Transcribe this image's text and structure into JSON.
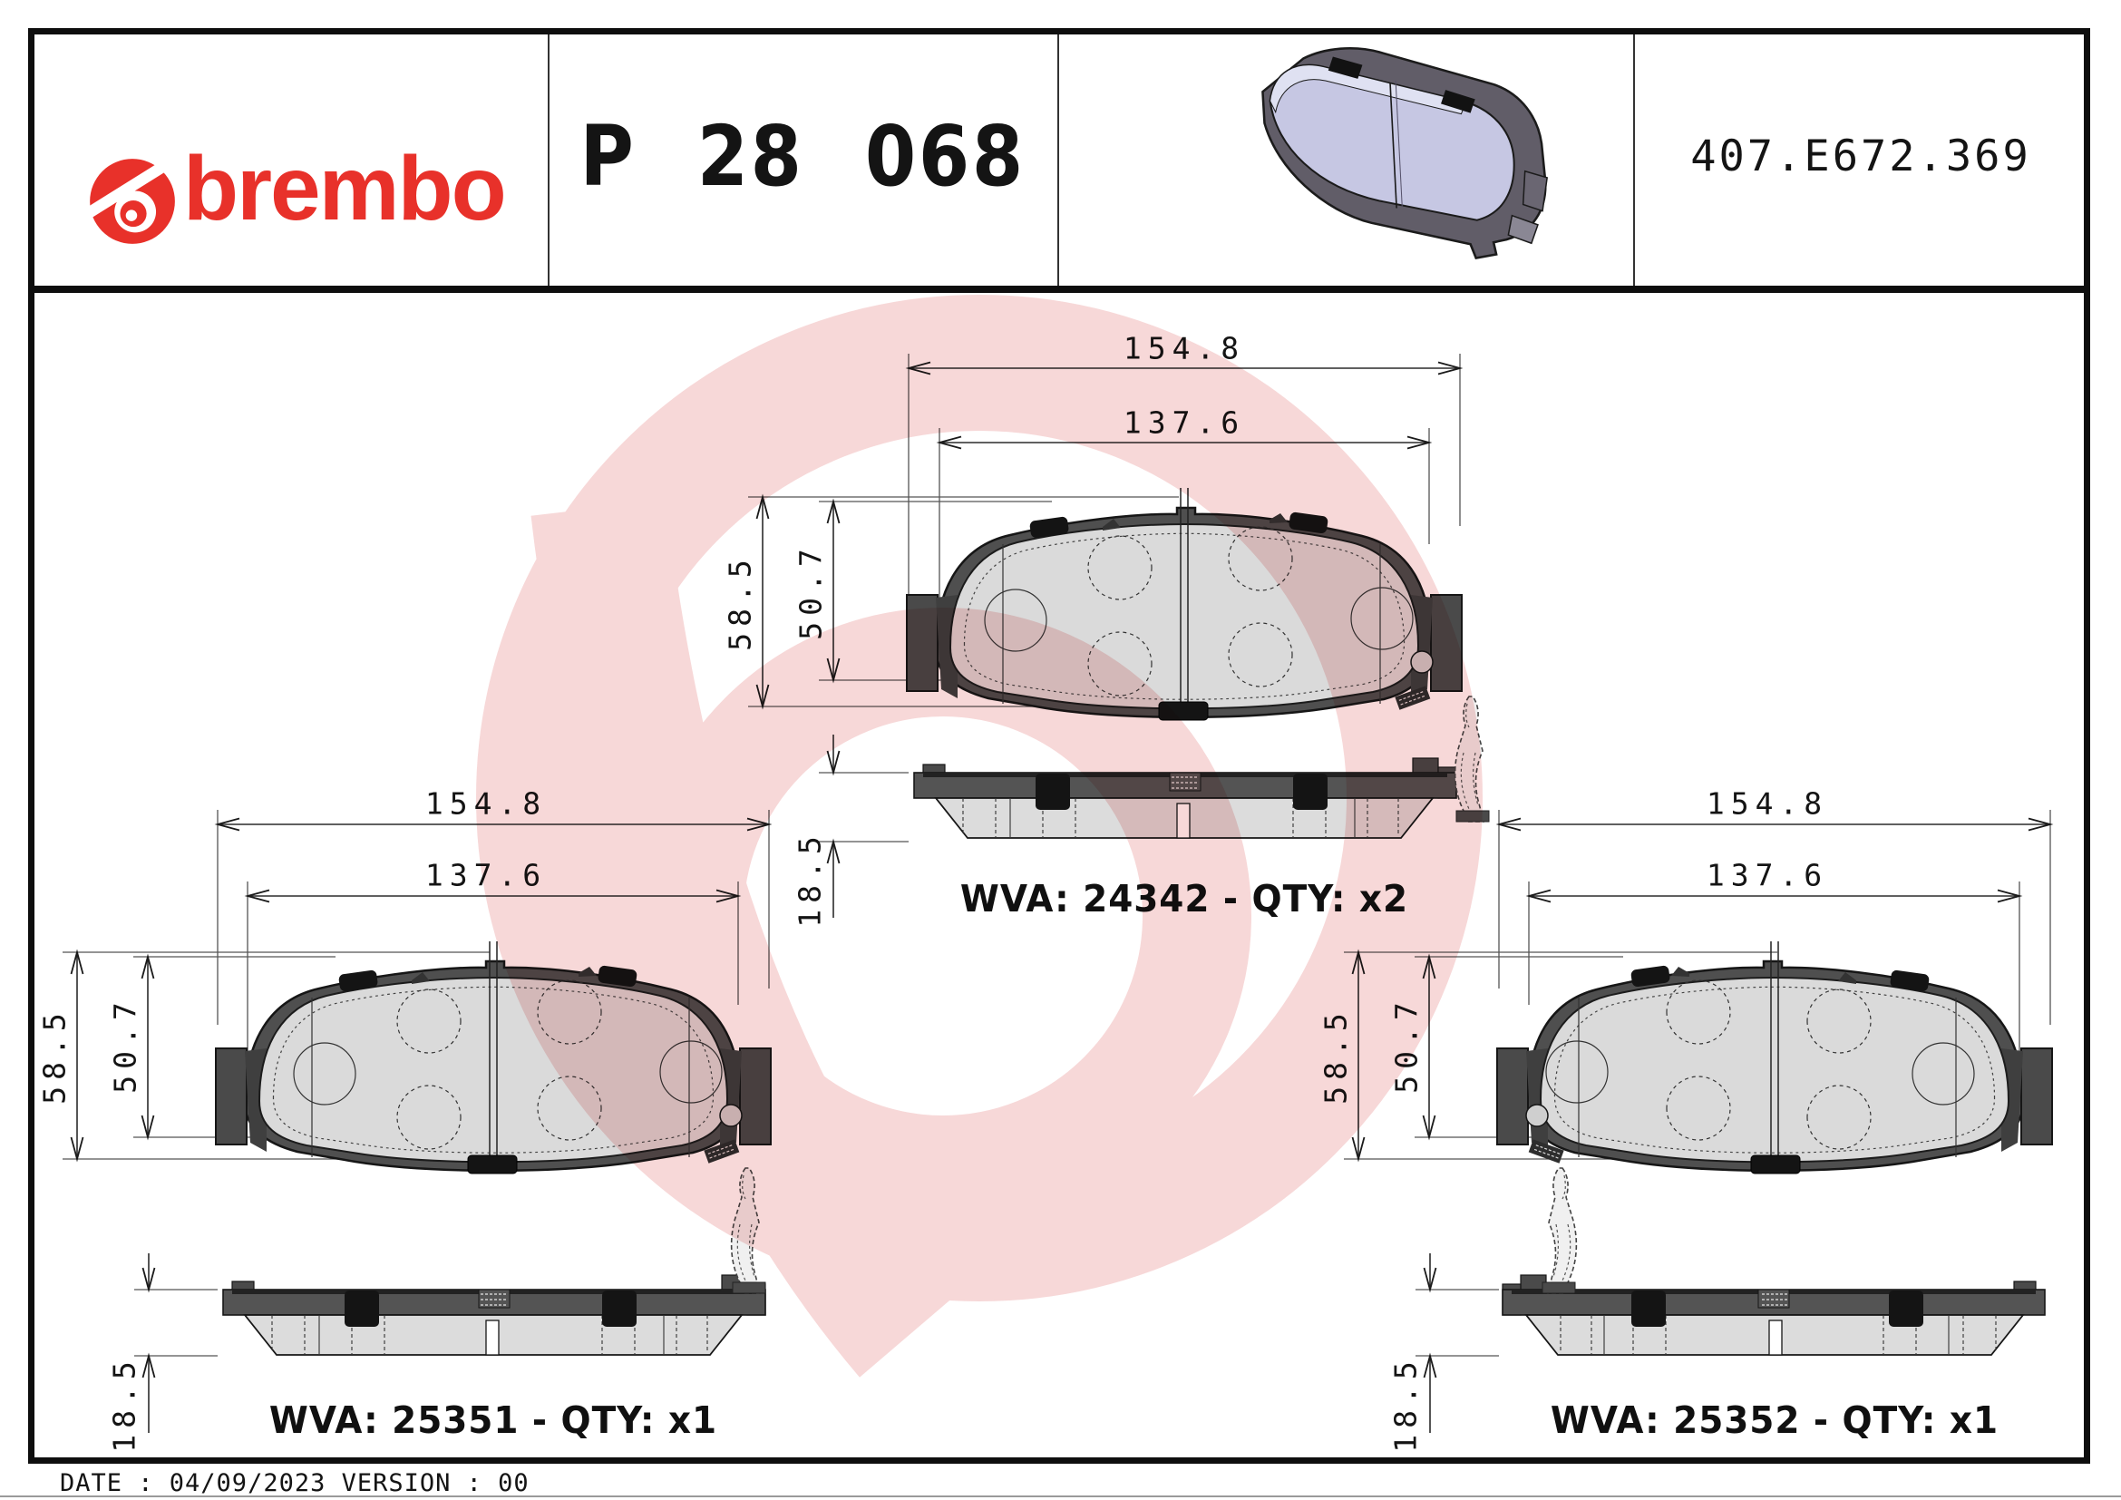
{
  "header": {
    "brand": "brembo",
    "part_number": "P 28 068",
    "reference": "407.E672.369"
  },
  "footer": {
    "text": "DATE : 04/09/2023 VERSION : 00"
  },
  "drawings": [
    {
      "position": "top-center",
      "width_total": "154.8",
      "width_inner": "137.6",
      "height_total": "58.5",
      "height_inner": "50.7",
      "thickness": "18.5",
      "wva_label": "WVA: 24342 - QTY: x2"
    },
    {
      "position": "bottom-left",
      "width_total": "154.8",
      "width_inner": "137.6",
      "height_total": "58.5",
      "height_inner": "50.7",
      "thickness": "18.5",
      "wva_label": "WVA: 25351 - QTY: x1"
    },
    {
      "position": "bottom-right",
      "width_total": "154.8",
      "width_inner": "137.6",
      "height_total": "58.5",
      "height_inner": "50.7",
      "thickness": "18.5",
      "wva_label": "WVA: 25352 - QTY: x1"
    }
  ],
  "colors": {
    "brand_red": "#e8312a",
    "watermark_pink": "#f7d8d8",
    "friction_gray": "#dadada",
    "backing_gray": "#4f4f4f",
    "pad3d_lavender": "#c6c7e3"
  }
}
